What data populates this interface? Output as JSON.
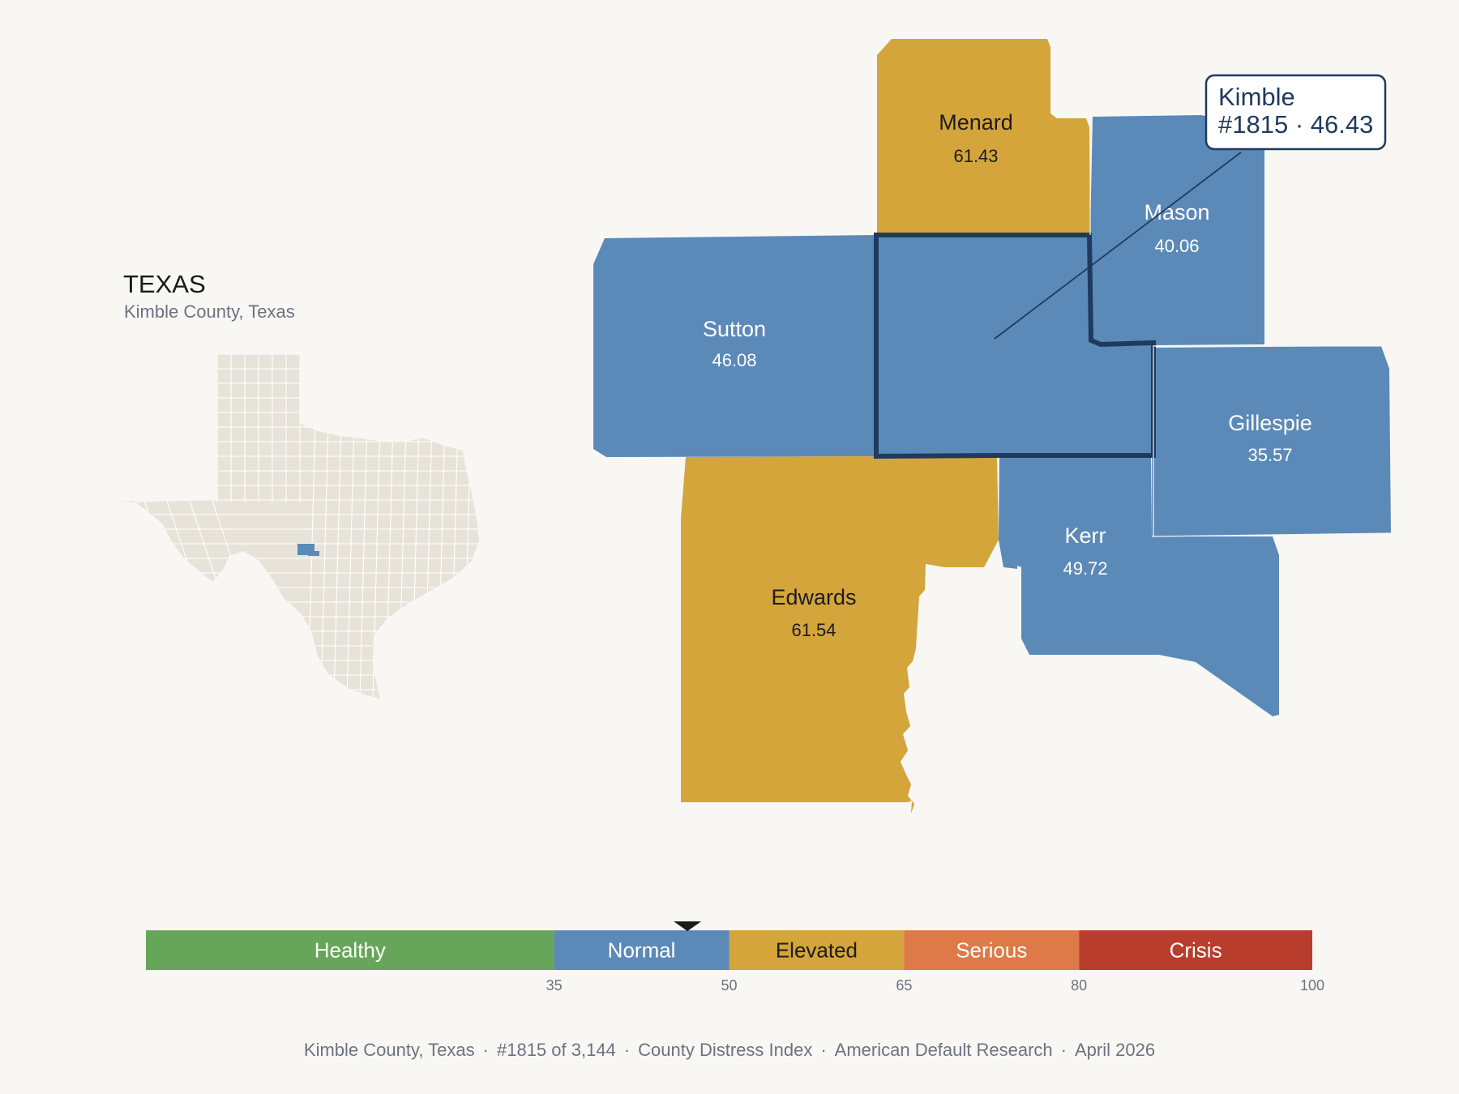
{
  "inset": {
    "title": "TEXAS",
    "subtitle": "Kimble County, Texas",
    "state_fill": "#e8e3d9",
    "highlight_fill": "#5b8ab9"
  },
  "callout": {
    "line1": "Kimble",
    "line2": "#1815 · 46.43"
  },
  "counties": [
    {
      "id": "menard",
      "name": "Menard",
      "score": "61.43",
      "category": "Elevated"
    },
    {
      "id": "mason",
      "name": "Mason",
      "score": "40.06",
      "category": "Normal"
    },
    {
      "id": "sutton",
      "name": "Sutton",
      "score": "46.08",
      "category": "Normal"
    },
    {
      "id": "kimble",
      "name": "Kimble",
      "score": "46.43",
      "category": "Normal",
      "selected": true
    },
    {
      "id": "gillespie",
      "name": "Gillespie",
      "score": "35.57",
      "category": "Normal"
    },
    {
      "id": "kerr",
      "name": "Kerr",
      "score": "49.72",
      "category": "Normal"
    },
    {
      "id": "edwards",
      "name": "Edwards",
      "score": "61.54",
      "category": "Elevated"
    }
  ],
  "legend": {
    "bands": [
      {
        "label": "Healthy",
        "from": 0,
        "to": 35,
        "color": "#67a65a",
        "text_color": "#ffffff"
      },
      {
        "label": "Normal",
        "from": 35,
        "to": 50,
        "color": "#5b8ab9",
        "text_color": "#ffffff"
      },
      {
        "label": "Elevated",
        "from": 50,
        "to": 65,
        "color": "#d4a53a",
        "text_color": "#1c1c1c"
      },
      {
        "label": "Serious",
        "from": 65,
        "to": 80,
        "color": "#dd7a48",
        "text_color": "#ffffff"
      },
      {
        "label": "Crisis",
        "from": 80,
        "to": 100,
        "color": "#b93d2c",
        "text_color": "#ffffff"
      }
    ],
    "ticks": [
      "35",
      "50",
      "65",
      "80",
      "100"
    ],
    "marker_value": 46.43
  },
  "colors": {
    "normal": "#5b8ab9",
    "elevated": "#d4a53a",
    "selected_outline": "#1f3a5f"
  },
  "footer": {
    "items": [
      "Kimble County, Texas",
      "#1815 of 3,144",
      "County Distress Index",
      "American Default Research",
      "April 2026"
    ]
  }
}
